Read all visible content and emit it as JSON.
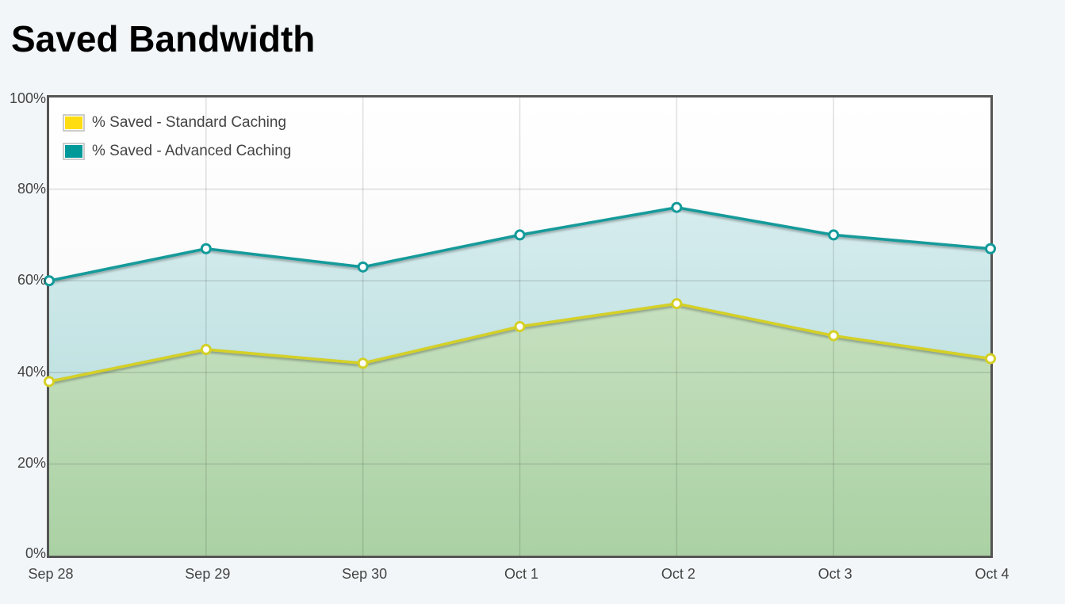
{
  "page": {
    "title": "Saved Bandwidth"
  },
  "colors": {
    "background": "#f2f6f9",
    "frame": "#555555",
    "standard_line": "#d4d025",
    "standard_swatch": "#ffdd11",
    "advanced_line": "#129a9a",
    "advanced_swatch": "#009999",
    "standard_fill_top": "#c6e0bf",
    "standard_fill_bottom": "#aad1a4",
    "advanced_fill_top": "#d6ecee",
    "advanced_fill_bottom": "#c1e2e2"
  },
  "legend": {
    "items": [
      {
        "label": "% Saved - Standard Caching"
      },
      {
        "label": "% Saved - Advanced Caching"
      }
    ]
  },
  "y_ticks": [
    "0%",
    "20%",
    "40%",
    "60%",
    "80%",
    "100%"
  ],
  "x_ticks": [
    "Sep 28",
    "Sep 29",
    "Sep 30",
    "Oct 1",
    "Oct 2",
    "Oct 3",
    "Oct 4"
  ],
  "chart_data": {
    "type": "area",
    "title": "Saved Bandwidth",
    "xlabel": "",
    "ylabel": "",
    "categories": [
      "Sep 28",
      "Sep 29",
      "Sep 30",
      "Oct 1",
      "Oct 2",
      "Oct 3",
      "Oct 4"
    ],
    "series": [
      {
        "name": "% Saved - Standard Caching",
        "values": [
          38,
          45,
          42,
          50,
          55,
          48,
          43
        ]
      },
      {
        "name": "% Saved - Advanced Caching",
        "values": [
          60,
          67,
          63,
          70,
          76,
          70,
          67
        ]
      }
    ],
    "ylim": [
      0,
      100
    ],
    "y_ticks": [
      0,
      20,
      40,
      60,
      80,
      100
    ],
    "y_tick_format": "percent",
    "grid": true,
    "legend_position": "top-left inside"
  }
}
